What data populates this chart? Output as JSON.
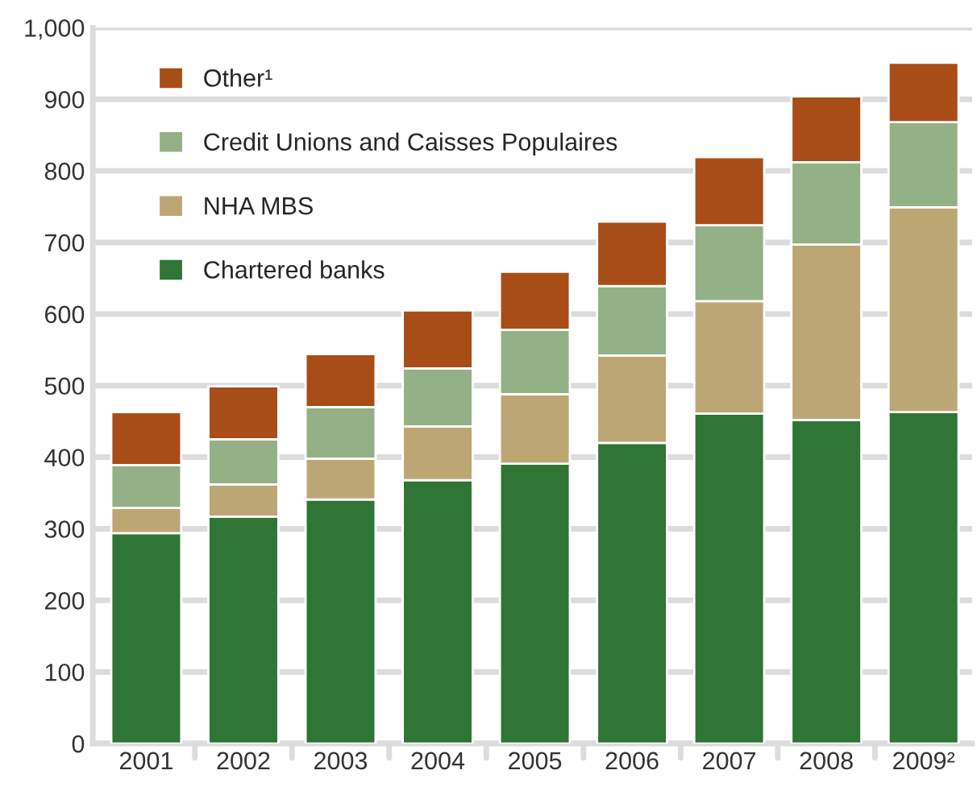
{
  "chart_data": {
    "type": "bar",
    "stacked": true,
    "categories": [
      "2001",
      "2002",
      "2003",
      "2004",
      "2005",
      "2006",
      "2007",
      "2008",
      "2009²"
    ],
    "series": [
      {
        "name": "Chartered banks",
        "color": "#2e7536",
        "values": [
          294,
          317,
          341,
          368,
          391,
          420,
          461,
          452,
          463
        ]
      },
      {
        "name": "NHA MBS",
        "color": "#bca774",
        "values": [
          35,
          45,
          57,
          75,
          97,
          122,
          157,
          245,
          286
        ]
      },
      {
        "name": "Credit Unions and Caisses Populaires",
        "color": "#93b087",
        "values": [
          60,
          63,
          72,
          81,
          90,
          97,
          106,
          115,
          119
        ]
      },
      {
        "name": "Other¹",
        "color": "#a84d17",
        "values": [
          74,
          74,
          74,
          81,
          81,
          90,
          95,
          92,
          83
        ]
      }
    ],
    "ylim": [
      0,
      1000
    ],
    "yticks": [
      0,
      100,
      200,
      300,
      400,
      500,
      600,
      700,
      800,
      900,
      {
        "value": 1000,
        "label": "1,000"
      }
    ],
    "grid": "y",
    "legend": "top left"
  }
}
